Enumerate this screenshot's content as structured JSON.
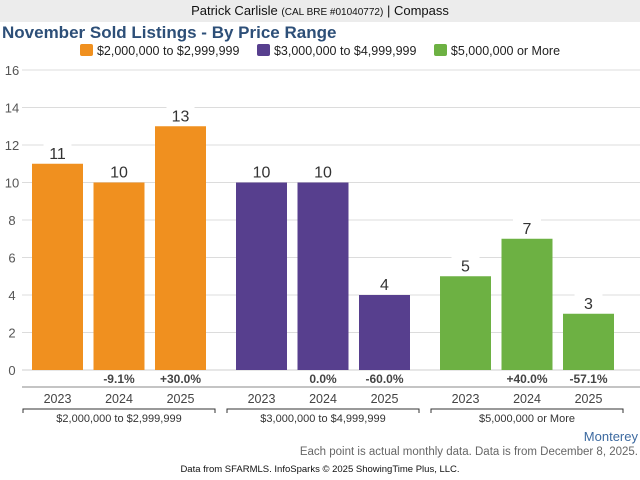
{
  "header": {
    "agent_name": "Patrick Carlisle",
    "license": "(CAL BRE #01040772)",
    "separator": "|",
    "brokerage": "Compass"
  },
  "colors": {
    "orange": "#f0901f",
    "purple": "#573f8e",
    "green": "#6db143",
    "title": "#2d4f78",
    "gridline": "#dcdcdc"
  },
  "chart_data": {
    "type": "bar",
    "title": "November Sold Listings - By Price Range",
    "xlabel": "",
    "ylabel": "",
    "ylim": [
      0,
      16
    ],
    "yticks": [
      0,
      2,
      4,
      6,
      8,
      10,
      12,
      14,
      16
    ],
    "grid": true,
    "legend_position": "top-center",
    "legend": [
      {
        "label": "$2,000,000 to $2,999,999",
        "color": "#f0901f"
      },
      {
        "label": "$3,000,000 to $4,999,999",
        "color": "#573f8e"
      },
      {
        "label": "$5,000,000 or More",
        "color": "#6db143"
      }
    ],
    "groups": [
      {
        "name": "$2,000,000 to $2,999,999",
        "color": "#f0901f",
        "categories": [
          "2023",
          "2024",
          "2025"
        ],
        "values": [
          11,
          10,
          13
        ],
        "changes": [
          "",
          "-9.1%",
          "+30.0%"
        ]
      },
      {
        "name": "$3,000,000 to $4,999,999",
        "color": "#573f8e",
        "categories": [
          "2023",
          "2024",
          "2025"
        ],
        "values": [
          10,
          10,
          4
        ],
        "changes": [
          "",
          "0.0%",
          "-60.0%"
        ]
      },
      {
        "name": "$5,000,000 or More",
        "color": "#6db143",
        "categories": [
          "2023",
          "2024",
          "2025"
        ],
        "values": [
          5,
          7,
          3
        ],
        "changes": [
          "",
          "+40.0%",
          "-57.1%"
        ]
      }
    ]
  },
  "footer": {
    "region": "Monterey",
    "note": "Each point is actual monthly data. Data is from December 8, 2025.",
    "credit": "Data from SFARMLS. InfoSparks © 2025 ShowingTime Plus, LLC."
  }
}
